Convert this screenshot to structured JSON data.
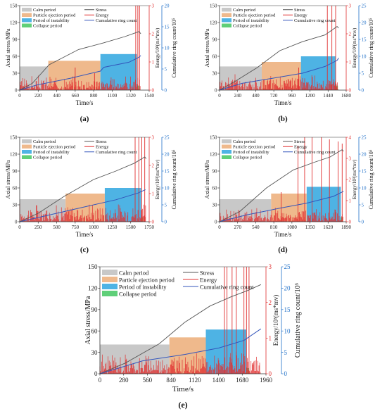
{
  "legend_labels": {
    "calm": "Calm period",
    "particle": "Particle ejection period",
    "instability": "Period of instability",
    "collapse": "Collapse period",
    "stress": "Stress",
    "energy": "Energy",
    "ring": "Cumulative ring count"
  },
  "colors": {
    "calm": "#c8c8c8",
    "particle": "#efb98c",
    "instability": "#4eb3e4",
    "collapse": "#5fcf78",
    "stress": "#555555",
    "energy": "#e03030",
    "ring": "#3355bb",
    "left_axis": "#333333",
    "energy_axis": "#e03030",
    "ring_axis": "#1e6fc8"
  },
  "chart_data": [
    {
      "type": "line",
      "panel_label": "(a)",
      "xlabel": "Time/s",
      "ylabel_left": "Axial stress/MPa",
      "ylabel_energy": "Energy/10³(ms*mv)",
      "ylabel_ring": "Cumulative ring count/10⁵",
      "x_ticks": [
        0,
        220,
        440,
        660,
        880,
        1100,
        1320,
        1540
      ],
      "xlim": [
        0,
        1540
      ],
      "stress_ticks": [
        0,
        30,
        60,
        90,
        120,
        150
      ],
      "stress_lim": [
        0,
        150
      ],
      "energy_ticks": [
        0,
        1,
        2,
        3
      ],
      "energy_lim": [
        0,
        3
      ],
      "ring_ticks": [
        0,
        5,
        10,
        15,
        20
      ],
      "ring_lim": [
        0,
        20
      ],
      "periods": [
        {
          "kind": "calm",
          "start": 0,
          "end": 340,
          "level": 42
        },
        {
          "kind": "particle",
          "start": 340,
          "end": 960,
          "level": 52
        },
        {
          "kind": "instability",
          "start": 960,
          "end": 1395,
          "level": 64
        },
        {
          "kind": "collapse",
          "start": 1395,
          "end": 1420,
          "level": 8
        }
      ],
      "stress": {
        "x": [
          0,
          150,
          350,
          700,
          1000,
          1250,
          1420,
          1440
        ],
        "y": [
          0,
          12,
          45,
          72,
          84,
          95,
          104,
          100
        ]
      },
      "ring": {
        "x": [
          0,
          200,
          600,
          960,
          1000,
          1300,
          1420,
          1440
        ],
        "y": [
          0,
          1.2,
          2.8,
          4.5,
          5.4,
          6.6,
          7.8,
          8.2
        ]
      },
      "energy_spikes": [
        {
          "x": 1380,
          "y": 3.0
        },
        {
          "x": 1405,
          "y": 3.0
        },
        {
          "x": 1425,
          "y": 3.0
        },
        {
          "x": 660,
          "y": 0.8
        },
        {
          "x": 890,
          "y": 0.6
        }
      ],
      "energy_noise_max": 0.4
    },
    {
      "type": "line",
      "panel_label": "(b)",
      "xlabel": "Time/s",
      "ylabel_left": "Axial stress/MPa",
      "ylabel_energy": "Energy/10³(ms*mv)",
      "ylabel_ring": "Cumulative ring count/10⁵",
      "x_ticks": [
        0,
        240,
        480,
        720,
        960,
        1200,
        1440,
        1680
      ],
      "xlim": [
        0,
        1680
      ],
      "stress_ticks": [
        0,
        30,
        60,
        90,
        120,
        150
      ],
      "stress_lim": [
        0,
        150
      ],
      "energy_ticks": [
        0,
        1,
        2,
        3
      ],
      "energy_lim": [
        0,
        3
      ],
      "ring_ticks": [
        0,
        5,
        10,
        15,
        20,
        25
      ],
      "ring_lim": [
        0,
        25
      ],
      "periods": [
        {
          "kind": "calm",
          "start": 0,
          "end": 560,
          "level": 42
        },
        {
          "kind": "particle",
          "start": 560,
          "end": 1080,
          "level": 50
        },
        {
          "kind": "instability",
          "start": 1080,
          "end": 1540,
          "level": 60
        },
        {
          "kind": "collapse",
          "start": 1540,
          "end": 1570,
          "level": 8
        }
      ],
      "stress": {
        "x": [
          0,
          200,
          500,
          800,
          1100,
          1400,
          1560,
          1580
        ],
        "y": [
          0,
          15,
          40,
          70,
          86,
          98,
          113,
          110
        ]
      },
      "ring": {
        "x": [
          0,
          300,
          700,
          1100,
          1400,
          1560,
          1580
        ],
        "y": [
          0,
          2,
          3.5,
          5,
          7,
          8.8,
          9.5
        ]
      },
      "energy_spikes": [
        {
          "x": 1430,
          "y": 3.0
        },
        {
          "x": 1490,
          "y": 3.0
        },
        {
          "x": 1540,
          "y": 3.0
        },
        {
          "x": 1050,
          "y": 0.8
        }
      ],
      "energy_noise_max": 0.45
    },
    {
      "type": "line",
      "panel_label": "(c)",
      "xlabel": "Time/s",
      "ylabel_left": "Axial stress/MPa",
      "ylabel_energy": "Energy/10³(ms*mv)",
      "ylabel_ring": "Cumulative ring count/10⁵",
      "x_ticks": [
        0,
        250,
        500,
        750,
        1000,
        1250,
        1500,
        1750
      ],
      "xlim": [
        0,
        1750
      ],
      "stress_ticks": [
        0,
        30,
        60,
        90,
        120,
        150
      ],
      "stress_lim": [
        0,
        150
      ],
      "energy_ticks": [
        0,
        1,
        2,
        3
      ],
      "energy_lim": [
        0,
        3
      ],
      "ring_ticks": [
        0,
        5,
        10,
        15,
        20,
        25
      ],
      "ring_lim": [
        0,
        25
      ],
      "periods": [
        {
          "kind": "calm",
          "start": 0,
          "end": 620,
          "level": 40
        },
        {
          "kind": "particle",
          "start": 620,
          "end": 1150,
          "level": 50
        },
        {
          "kind": "instability",
          "start": 1150,
          "end": 1640,
          "level": 60
        },
        {
          "kind": "collapse",
          "start": 1640,
          "end": 1670,
          "level": 8
        }
      ],
      "stress": {
        "x": [
          0,
          250,
          600,
          1000,
          1300,
          1550,
          1690,
          1710
        ],
        "y": [
          0,
          15,
          45,
          75,
          90,
          104,
          115,
          112
        ]
      },
      "ring": {
        "x": [
          0,
          400,
          900,
          1300,
          1600,
          1700
        ],
        "y": [
          0,
          2,
          4.5,
          6.5,
          8.5,
          9.5
        ]
      },
      "energy_spikes": [
        {
          "x": 1560,
          "y": 3.0
        },
        {
          "x": 1610,
          "y": 3.0
        },
        {
          "x": 1650,
          "y": 3.0
        },
        {
          "x": 1690,
          "y": 3.0
        }
      ],
      "energy_noise_max": 0.55
    },
    {
      "type": "line",
      "panel_label": "(d)",
      "xlabel": "Time/s",
      "ylabel_left": "Axial stress/MPa",
      "ylabel_energy": "Energy/10³(ms*mv)",
      "ylabel_ring": "Cumulative ring count/10⁵",
      "x_ticks": [
        0,
        270,
        540,
        810,
        1080,
        1350,
        1620,
        1890
      ],
      "xlim": [
        0,
        1890
      ],
      "stress_ticks": [
        0,
        30,
        60,
        90,
        120,
        150
      ],
      "stress_lim": [
        0,
        150
      ],
      "energy_ticks": [
        0,
        1,
        2,
        3,
        4
      ],
      "energy_lim": [
        0,
        4
      ],
      "ring_ticks": [
        0,
        5,
        10,
        15,
        20,
        25
      ],
      "ring_lim": [
        0,
        25
      ],
      "periods": [
        {
          "kind": "calm",
          "start": 0,
          "end": 770,
          "level": 40
        },
        {
          "kind": "particle",
          "start": 770,
          "end": 1300,
          "level": 50
        },
        {
          "kind": "instability",
          "start": 1300,
          "end": 1810,
          "level": 62
        },
        {
          "kind": "collapse",
          "start": 1810,
          "end": 1840,
          "level": 8
        }
      ],
      "stress": {
        "x": [
          0,
          300,
          700,
          1100,
          1400,
          1650,
          1830,
          1850
        ],
        "y": [
          0,
          18,
          60,
          92,
          105,
          115,
          128,
          125
        ]
      },
      "ring": {
        "x": [
          0,
          400,
          900,
          1300,
          1700,
          1850
        ],
        "y": [
          0,
          2,
          4,
          5.5,
          7.5,
          9
        ]
      },
      "energy_spikes": [
        {
          "x": 920,
          "y": 1.4
        },
        {
          "x": 1170,
          "y": 3.6
        },
        {
          "x": 1270,
          "y": 4.0
        },
        {
          "x": 1380,
          "y": 4.0
        },
        {
          "x": 1520,
          "y": 4.0
        },
        {
          "x": 1640,
          "y": 3.9
        },
        {
          "x": 1770,
          "y": 3.8
        },
        {
          "x": 1830,
          "y": 3.7
        }
      ],
      "energy_noise_max": 0.5
    },
    {
      "type": "line",
      "panel_label": "(e)",
      "xlabel": "Time/s",
      "ylabel_left": "Axial stress/MPa",
      "ylabel_energy": "Energy/10³(ms*mv)",
      "ylabel_ring": "Cumulative ring count/10⁵",
      "x_ticks": [
        0,
        280,
        560,
        840,
        1120,
        1400,
        1680,
        1960
      ],
      "xlim": [
        0,
        1960
      ],
      "stress_ticks": [
        0,
        30,
        60,
        90,
        120,
        150
      ],
      "stress_lim": [
        0,
        150
      ],
      "energy_ticks": [
        0,
        1,
        2,
        3
      ],
      "energy_lim": [
        0,
        3
      ],
      "ring_ticks": [
        0,
        5,
        10,
        15,
        20,
        25
      ],
      "ring_lim": [
        0,
        25
      ],
      "periods": [
        {
          "kind": "calm",
          "start": 0,
          "end": 820,
          "level": 41
        },
        {
          "kind": "particle",
          "start": 820,
          "end": 1250,
          "level": 51
        },
        {
          "kind": "instability",
          "start": 1250,
          "end": 1730,
          "level": 62
        },
        {
          "kind": "collapse",
          "start": 1730,
          "end": 1760,
          "level": 8
        }
      ],
      "stress": {
        "x": [
          0,
          300,
          700,
          1000,
          1300,
          1550,
          1750,
          1900
        ],
        "y": [
          0,
          15,
          42,
          72,
          95,
          108,
          117,
          125
        ]
      },
      "ring": {
        "x": [
          0,
          500,
          1000,
          1400,
          1700,
          1900
        ],
        "y": [
          0,
          3,
          4.5,
          6,
          7.8,
          10.5
        ]
      },
      "energy_spikes": [
        {
          "x": 1470,
          "y": 3.0
        },
        {
          "x": 1500,
          "y": 3.0
        },
        {
          "x": 1560,
          "y": 3.0
        },
        {
          "x": 1610,
          "y": 3.0
        },
        {
          "x": 1700,
          "y": 3.0
        },
        {
          "x": 1730,
          "y": 3.0
        },
        {
          "x": 1760,
          "y": 3.0
        }
      ],
      "energy_noise_max": 0.45
    }
  ]
}
